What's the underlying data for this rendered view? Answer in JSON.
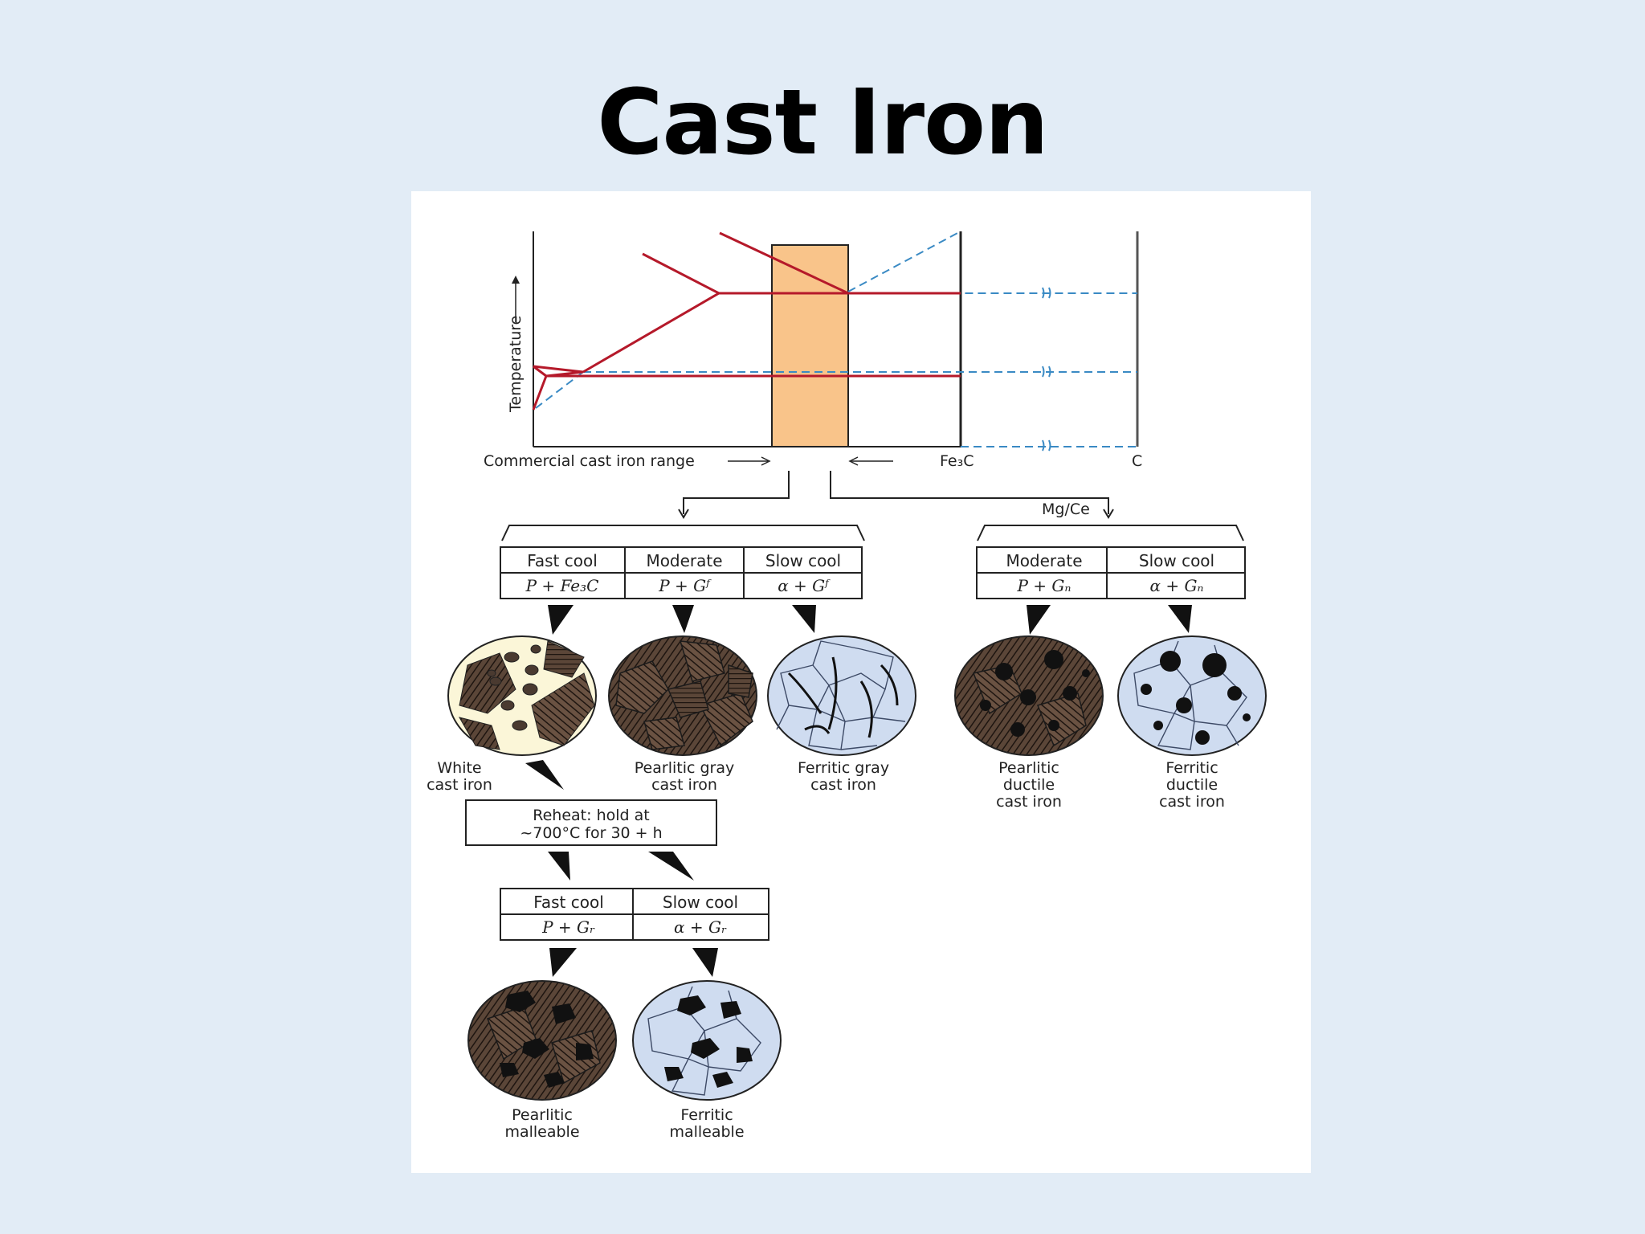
{
  "slide": {
    "title": "Cast Iron"
  },
  "phase_diagram": {
    "y_axis_label": "Temperature",
    "range_label": "Commercial cast iron range",
    "fe3c_label": "Fe₃C",
    "c_label": "C"
  },
  "branch_label": "Mg/Ce",
  "table_left": {
    "headers": [
      "Fast cool",
      "Moderate",
      "Slow cool"
    ],
    "phases": [
      "P + Fe₃C",
      "P + Gᶠ",
      "α + Gᶠ"
    ]
  },
  "table_right": {
    "headers": [
      "Moderate",
      "Slow cool"
    ],
    "phases": [
      "P + Gₙ",
      "α + Gₙ"
    ]
  },
  "microstructures_top": [
    {
      "label_line1": "White",
      "label_line2": "cast iron"
    },
    {
      "label_line1": "Pearlitic gray",
      "label_line2": "cast iron"
    },
    {
      "label_line1": "Ferritic gray",
      "label_line2": "cast iron"
    },
    {
      "label_line1": "Pearlitic",
      "label_line2": "ductile",
      "label_line3": "cast iron"
    },
    {
      "label_line1": "Ferritic",
      "label_line2": "ductile",
      "label_line3": "cast iron"
    }
  ],
  "reheat_box": {
    "line1": "Reheat: hold at",
    "line2": "~700°C for 30 + h"
  },
  "table_bottom": {
    "headers": [
      "Fast cool",
      "Slow cool"
    ],
    "phases": [
      "P + Gᵣ",
      "α + Gᵣ"
    ]
  },
  "microstructures_bottom": [
    {
      "label_line1": "Pearlitic",
      "label_line2": "malleable"
    },
    {
      "label_line1": "Ferritic",
      "label_line2": "malleable"
    }
  ],
  "colors": {
    "background": "#e2ecf6",
    "composition_band": "#f9c48a",
    "phase_line": "#b5192a",
    "dashed_line": "#3a8ac4",
    "pearlite_fill": "#4a3a30",
    "ferrite_fill": "#cfdcf0",
    "cementite_fill": "#fbf6d8"
  }
}
